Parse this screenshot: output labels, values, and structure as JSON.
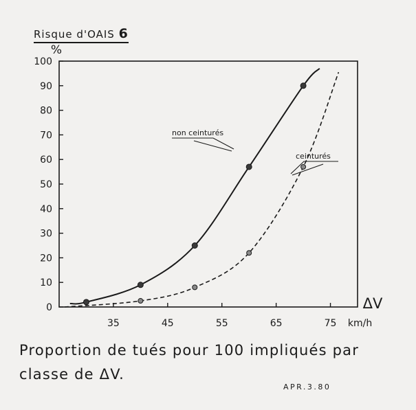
{
  "header": {
    "title_prefix": "Risque d'OAIS",
    "title_number": "6"
  },
  "caption": {
    "line1": "Proportion de tués pour 100 impliqués par",
    "line2": "classe de ΔV."
  },
  "reference": "APR.3.80",
  "chart_data": {
    "type": "line",
    "ylabel": "%",
    "xlabel": "ΔV",
    "x_unit": "km/h",
    "xlim": [
      25,
      80
    ],
    "ylim": [
      0,
      100
    ],
    "x_ticks": [
      35,
      45,
      55,
      65,
      75
    ],
    "y_ticks": [
      0,
      10,
      20,
      30,
      40,
      50,
      60,
      70,
      80,
      90,
      100
    ],
    "grid": false,
    "series": [
      {
        "name": "non ceinturés",
        "style": "solid",
        "points": [
          {
            "x": 30,
            "y": 2
          },
          {
            "x": 40,
            "y": 9
          },
          {
            "x": 50,
            "y": 25
          },
          {
            "x": 60,
            "y": 57
          },
          {
            "x": 70,
            "y": 90
          }
        ]
      },
      {
        "name": "ceinturés",
        "style": "dashed",
        "points": [
          {
            "x": 40,
            "y": 2.5
          },
          {
            "x": 50,
            "y": 8
          },
          {
            "x": 60,
            "y": 22
          },
          {
            "x": 70,
            "y": 57
          }
        ]
      }
    ]
  }
}
